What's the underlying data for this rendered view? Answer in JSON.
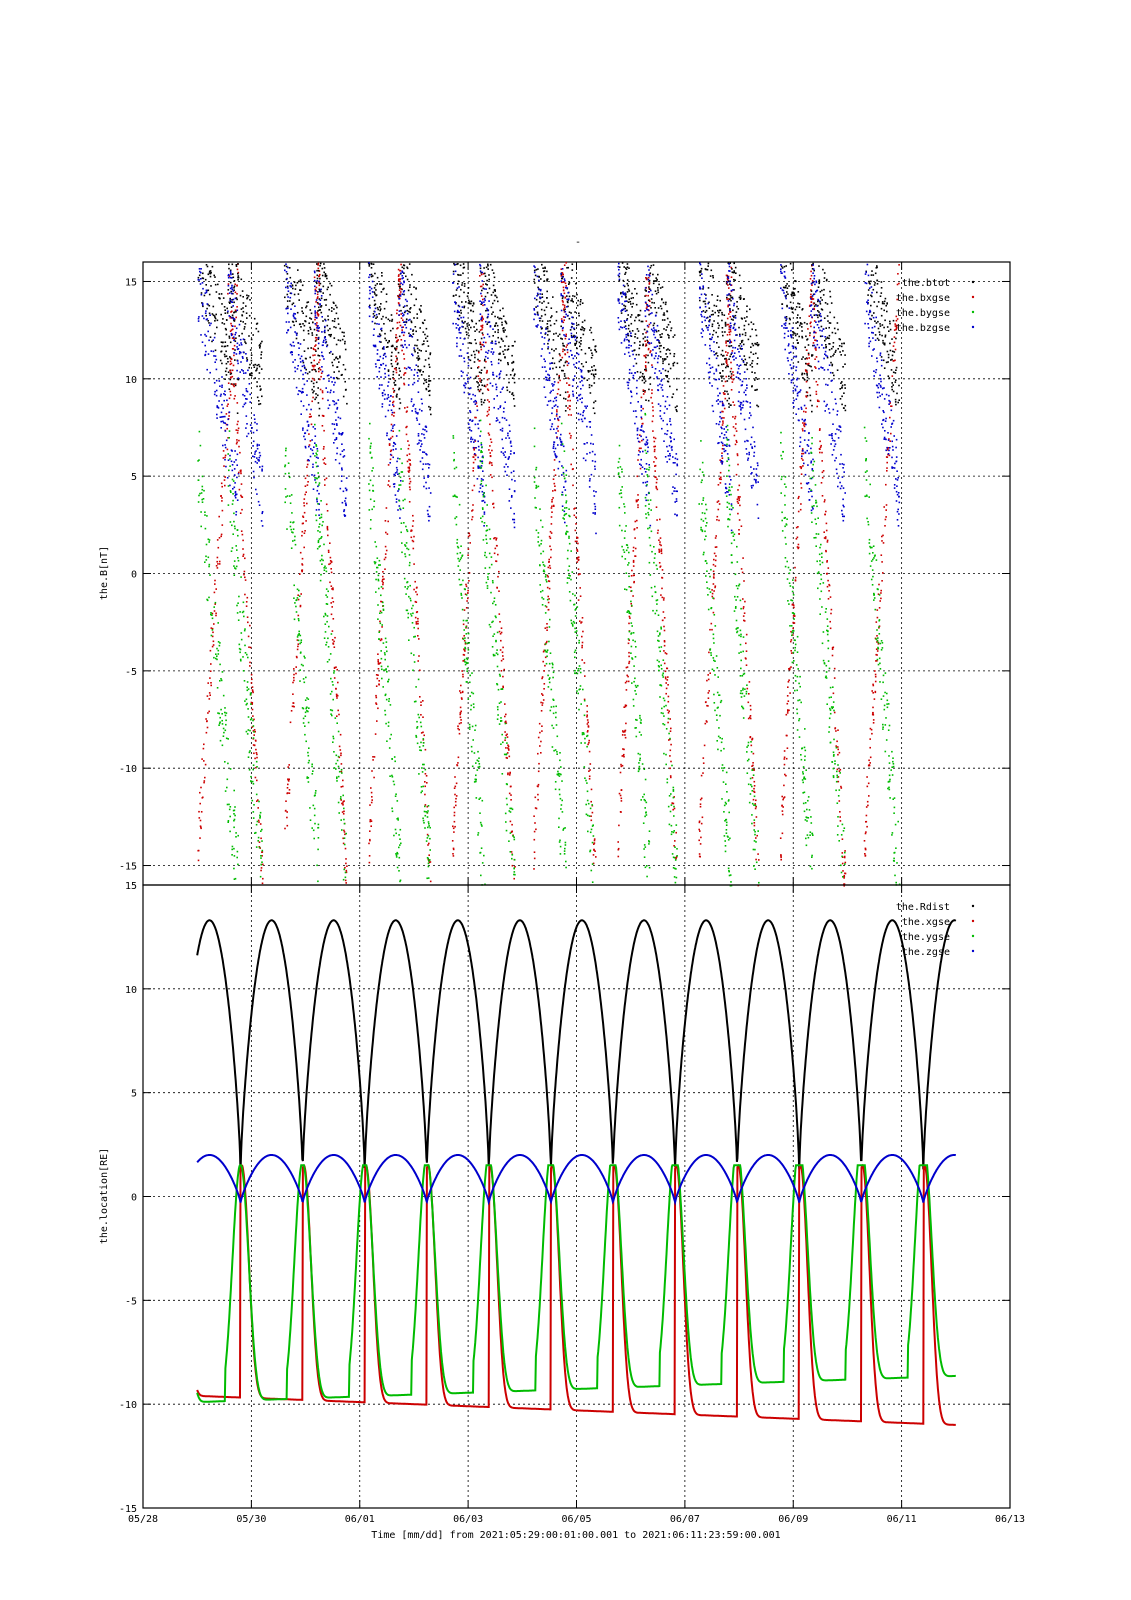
{
  "page_title": "-",
  "chart_data": [
    {
      "type": "scatter",
      "ylabel": "the.B[nT]",
      "ylim": [
        -16,
        16
      ],
      "yticks": [
        15,
        10,
        5,
        0,
        -5,
        -10,
        -15
      ],
      "grid": true,
      "legend_position": "top-right",
      "series": [
        {
          "name": "the.btot",
          "color": "#000000"
        },
        {
          "name": "the.bxgse",
          "color": "#cc0000"
        },
        {
          "name": "the.bygse",
          "color": "#00bb00"
        },
        {
          "name": "the.bzgse",
          "color": "#0000cc"
        }
      ],
      "active_intervals_days": [
        [
          1.0,
          1.75
        ],
        [
          1.55,
          2.2
        ],
        [
          2.6,
          3.25
        ],
        [
          3.15,
          3.75
        ],
        [
          4.15,
          4.75
        ],
        [
          4.7,
          5.3
        ],
        [
          5.7,
          6.3
        ],
        [
          6.2,
          6.85
        ],
        [
          7.2,
          7.8
        ],
        [
          7.7,
          8.35
        ],
        [
          8.75,
          9.35
        ],
        [
          9.25,
          9.85
        ],
        [
          10.25,
          10.85
        ],
        [
          10.75,
          11.35
        ],
        [
          11.75,
          12.35
        ],
        [
          12.3,
          12.95
        ],
        [
          13.3,
          13.95
        ]
      ],
      "note_values": "dense point clouds between roughly -16 and 16 nT following the orbit"
    },
    {
      "type": "line",
      "ylabel": "the.location[RE]",
      "ylim": [
        -15,
        15
      ],
      "yticks": [
        15,
        10,
        5,
        0,
        -5,
        -10,
        -15
      ],
      "grid": true,
      "legend_position": "top-right",
      "period_days": 1.1455,
      "perigee_first_day": 1.8,
      "series": [
        {
          "name": "the.Rdist",
          "color": "#000000",
          "min": 1.2,
          "max": 13.3
        },
        {
          "name": "the.xgse",
          "color": "#cc0000",
          "min": -11.0,
          "max": 1.5
        },
        {
          "name": "the.ygse",
          "color": "#00bb00",
          "min": -10.4,
          "max": 1.5
        },
        {
          "name": "the.zgse",
          "color": "#0000cc",
          "min": -0.3,
          "max": 2.0
        }
      ]
    }
  ],
  "x_axis": {
    "label": "Time [mm/dd]  from 2021:05:29:00:01:00.001  to  2021:06:11:23:59:00.001",
    "range_days": [
      0,
      16
    ],
    "data_range_days": [
      1.0,
      15.0
    ],
    "tick_labels": [
      "05/28",
      "05/30",
      "06/01",
      "06/03",
      "06/05",
      "06/07",
      "06/09",
      "06/11",
      "06/13"
    ],
    "tick_positions_days": [
      0,
      2,
      4,
      6,
      8,
      10,
      12,
      14,
      16
    ]
  }
}
